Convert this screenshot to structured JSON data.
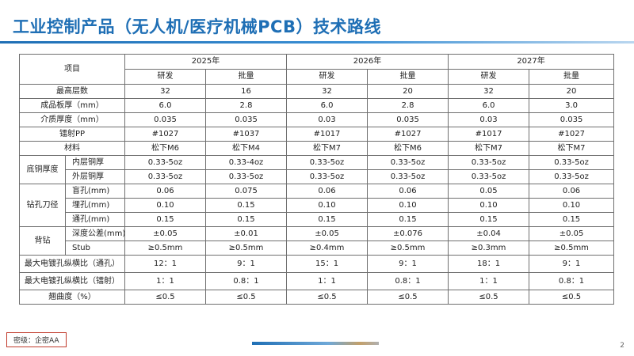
{
  "title": "工业控制产品（无人机/医疗机械PCB）技术路线",
  "table": {
    "item_header": "项目",
    "years": [
      "2025年",
      "2026年",
      "2027年"
    ],
    "phases": [
      "研发",
      "批量",
      "研发",
      "批量",
      "研发",
      "批量"
    ],
    "rows": [
      {
        "label": "最高层数",
        "values": [
          "32",
          "16",
          "32",
          "20",
          "32",
          "20"
        ]
      },
      {
        "label": "成品板厚（mm）",
        "values": [
          "6.0",
          "2.8",
          "6.0",
          "2.8",
          "6.0",
          "3.0"
        ]
      },
      {
        "label": "介质厚度（mm）",
        "values": [
          "0.035",
          "0.035",
          "0.03",
          "0.035",
          "0.03",
          "0.035"
        ]
      },
      {
        "label": "镭射PP",
        "values": [
          "#1027",
          "#1037",
          "#1017",
          "#1027",
          "#1017",
          "#1027"
        ]
      },
      {
        "label": "材料",
        "values": [
          "松下M6",
          "松下M4",
          "松下M7",
          "松下M6",
          "松下M7",
          "松下M7"
        ]
      },
      {
        "group": "底铜厚度",
        "label": "内层铜厚",
        "values": [
          "0.33-5oz",
          "0.33-4oz",
          "0.33-5oz",
          "0.33-5oz",
          "0.33-5oz",
          "0.33-5oz"
        ]
      },
      {
        "group": "底铜厚度",
        "label": "外层铜厚",
        "values": [
          "0.33-5oz",
          "0.33-5oz",
          "0.33-5oz",
          "0.33-5oz",
          "0.33-5oz",
          "0.33-5oz"
        ]
      },
      {
        "group": "钻孔刀径",
        "label": "盲孔(mm)",
        "values": [
          "0.06",
          "0.075",
          "0.06",
          "0.06",
          "0.05",
          "0.06"
        ]
      },
      {
        "group": "钻孔刀径",
        "label": "埋孔(mm)",
        "values": [
          "0.10",
          "0.15",
          "0.10",
          "0.10",
          "0.10",
          "0.10"
        ]
      },
      {
        "group": "钻孔刀径",
        "label": "通孔(mm)",
        "values": [
          "0.15",
          "0.15",
          "0.15",
          "0.15",
          "0.15",
          "0.15"
        ]
      },
      {
        "group": "背钻",
        "label": "深度公差(mm)",
        "values": [
          "±0.05",
          "±0.01",
          "±0.05",
          "±0.076",
          "±0.04",
          "±0.05"
        ]
      },
      {
        "group": "背钻",
        "label": "Stub",
        "values": [
          "≥0.5mm",
          "≥0.5mm",
          "≥0.4mm",
          "≥0.5mm",
          "≥0.3mm",
          "≥0.5mm"
        ]
      },
      {
        "label": "最大电镀孔纵横比（通孔）",
        "values": [
          "12：1",
          "9：1",
          "15：1",
          "9：1",
          "18：1",
          "9：1"
        ]
      },
      {
        "label": "最大电镀孔纵横比（镭射）",
        "values": [
          "1：1",
          "0.8：1",
          "1：1",
          "0.8：1",
          "1：1",
          "0.8：1"
        ]
      },
      {
        "label": "翘曲度（%）",
        "values": [
          "≤0.5",
          "≤0.5",
          "≤0.5",
          "≤0.5",
          "≤0.5",
          "≤0.5"
        ]
      }
    ]
  },
  "footer": {
    "security_label": "密级：企密AA",
    "page_number": "2"
  },
  "colors": {
    "title": "#1f6fb5",
    "table_border": "#6f6f6f",
    "footer_border": "#c0392b"
  }
}
